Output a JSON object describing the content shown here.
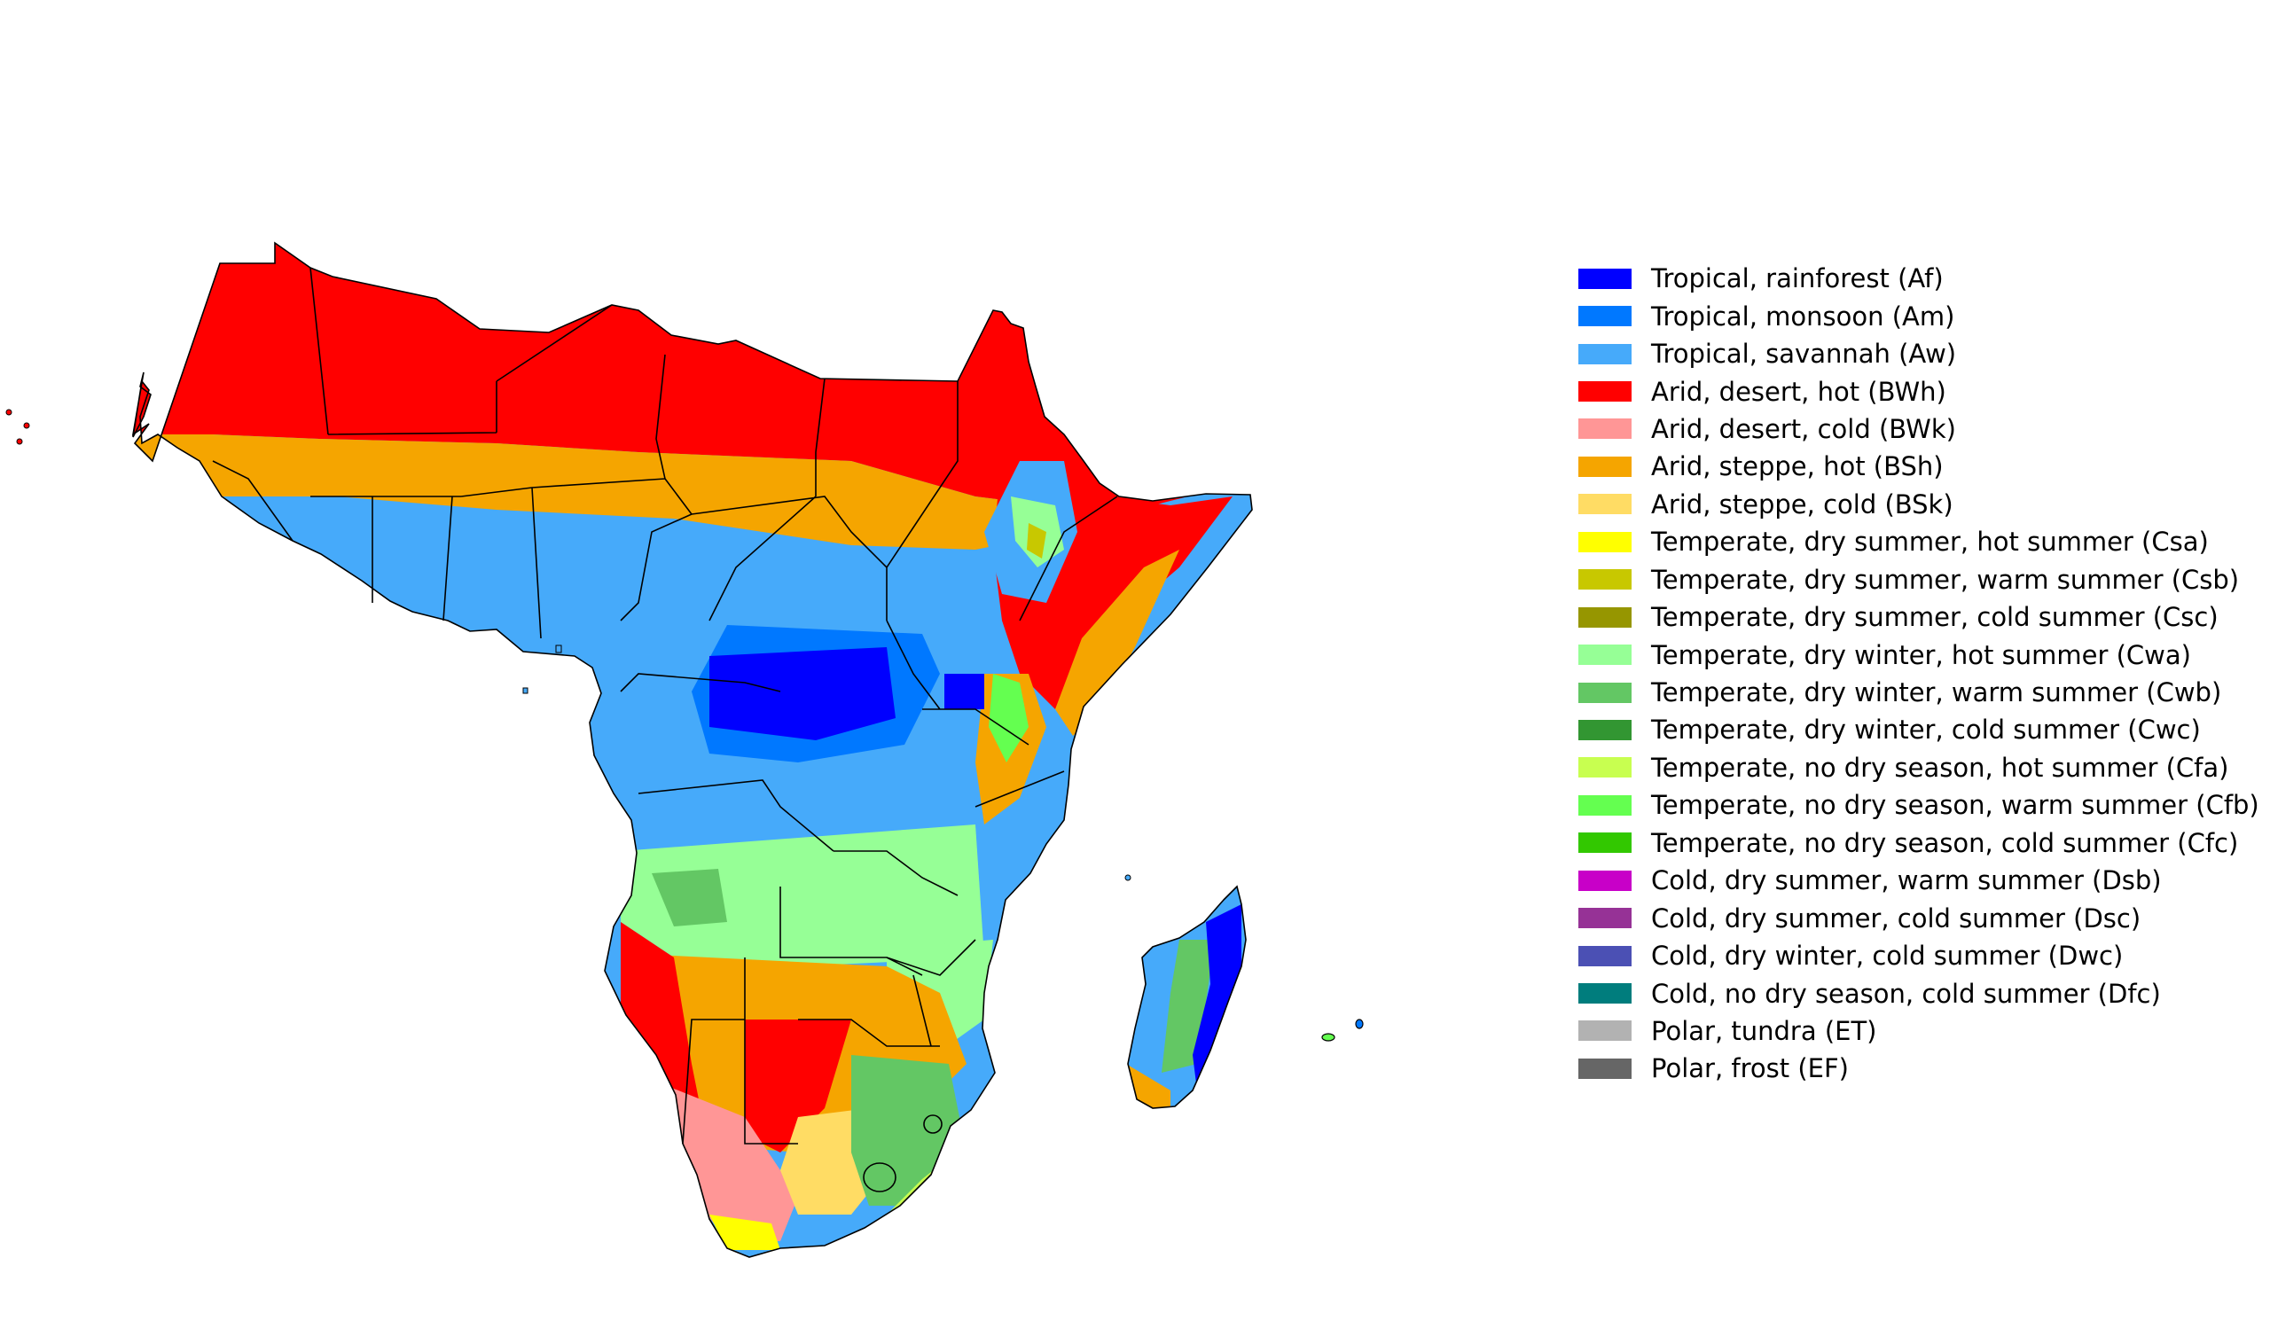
{
  "map": {
    "colors": {
      "Af": "#0000ff",
      "Am": "#0078ff",
      "Aw": "#46aafa",
      "BWh": "#ff0000",
      "BWk": "#ff9696",
      "BSh": "#f5a500",
      "BSk": "#ffdc64",
      "Csa": "#ffff00",
      "Csb": "#c8c800",
      "Cwa": "#96ff96",
      "Cwb": "#63c764",
      "Cfa": "#c8ff50",
      "Cfb": "#64ff50",
      "Cfc": "#32c800"
    }
  },
  "legend": {
    "items": [
      {
        "label": "Tropical, rainforest (Af)",
        "color": "#0000ff"
      },
      {
        "label": "Tropical, monsoon (Am)",
        "color": "#0078ff"
      },
      {
        "label": "Tropical, savannah (Aw)",
        "color": "#46aafa"
      },
      {
        "label": "Arid, desert, hot (BWh)",
        "color": "#ff0000"
      },
      {
        "label": "Arid, desert, cold (BWk)",
        "color": "#ff9696"
      },
      {
        "label": "Arid, steppe, hot (BSh)",
        "color": "#f5a500"
      },
      {
        "label": "Arid, steppe, cold (BSk)",
        "color": "#ffdc64"
      },
      {
        "label": "Temperate, dry summer, hot summer (Csa)",
        "color": "#ffff00"
      },
      {
        "label": "Temperate, dry summer, warm summer (Csb)",
        "color": "#c8c800"
      },
      {
        "label": "Temperate, dry summer, cold summer (Csc)",
        "color": "#969600"
      },
      {
        "label": "Temperate, dry winter, hot summer (Cwa)",
        "color": "#96ff96"
      },
      {
        "label": "Temperate, dry winter, warm summer (Cwb)",
        "color": "#63c764"
      },
      {
        "label": "Temperate, dry winter, cold summer (Cwc)",
        "color": "#329632"
      },
      {
        "label": "Temperate, no dry season, hot summer (Cfa)",
        "color": "#c8ff50"
      },
      {
        "label": "Temperate, no dry season, warm summer (Cfb)",
        "color": "#64ff50"
      },
      {
        "label": "Temperate, no dry season, cold summer (Cfc)",
        "color": "#32c800"
      },
      {
        "label": "Cold, dry summer, warm summer (Dsb)",
        "color": "#c800c8"
      },
      {
        "label": "Cold, dry summer, cold summer (Dsc)",
        "color": "#963296"
      },
      {
        "label": "Cold, dry winter, cold summer (Dwc)",
        "color": "#4b50b4"
      },
      {
        "label": "Cold, no dry season, cold summer (Dfc)",
        "color": "#007d7d"
      },
      {
        "label": "Polar, tundra (ET)",
        "color": "#b2b2b2"
      },
      {
        "label": "Polar, frost (EF)",
        "color": "#666666"
      }
    ]
  }
}
